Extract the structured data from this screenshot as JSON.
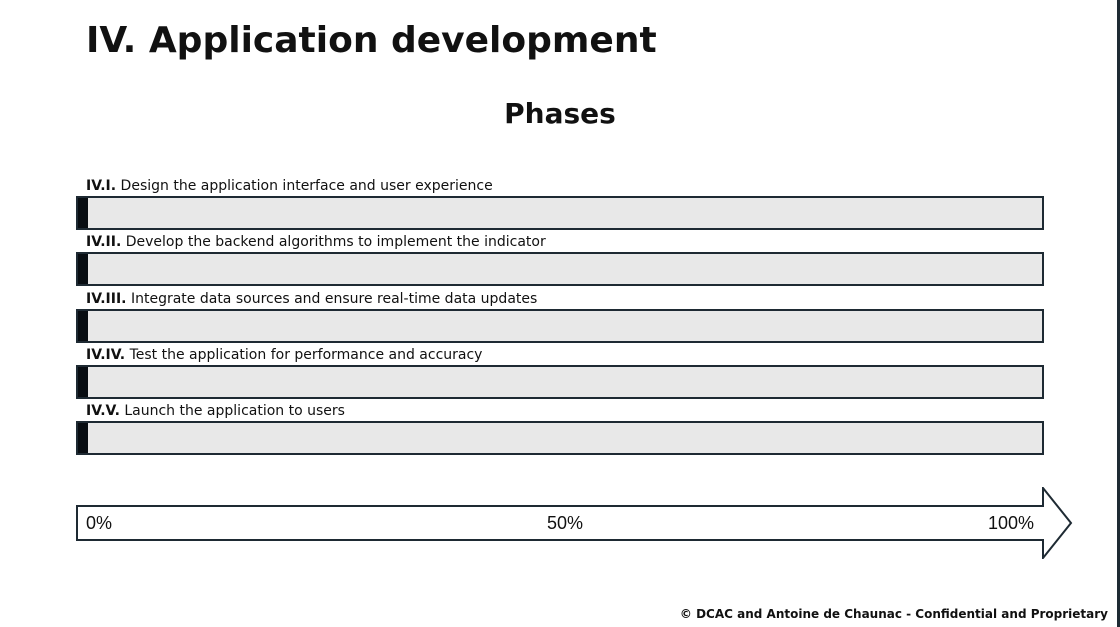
{
  "header": {
    "title": "IV. Application development"
  },
  "section": {
    "title": "Phases"
  },
  "phases": [
    {
      "code": "IV.I.",
      "text": "Design the application interface and user experience",
      "progress_percent": 1
    },
    {
      "code": "IV.II.",
      "text": "Develop the backend algorithms to implement the indicator",
      "progress_percent": 1
    },
    {
      "code": "IV.III.",
      "text": "Integrate data sources and ensure real-time data updates",
      "progress_percent": 1
    },
    {
      "code": "IV.IV.",
      "text": "Test the application for performance and accuracy",
      "progress_percent": 1
    },
    {
      "code": "IV.V.",
      "text": "Launch the application to users",
      "progress_percent": 1
    }
  ],
  "scale": {
    "start_label": "0%",
    "mid_label": "50%",
    "end_label": "100%"
  },
  "colors": {
    "bar_background": "#e8e8e8",
    "bar_border": "#1e2a33",
    "bar_fill": "#080d12"
  },
  "footer": {
    "text": "© DCAC and Antoine de Chaunac - Confidential and Proprietary"
  }
}
